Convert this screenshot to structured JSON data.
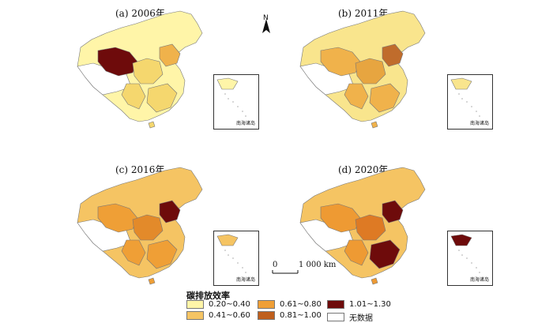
{
  "panels": [
    {
      "title": "(a) 2006年",
      "main": "#fff5a8",
      "a1": "#f5d76e",
      "a2": "#f0b24b",
      "hot": "#6e0b0b"
    },
    {
      "title": "(b) 2011年",
      "main": "#f9e58d",
      "a1": "#f0b24b",
      "a2": "#e7a540",
      "hot": "#c06c2c"
    },
    {
      "title": "(c) 2016年",
      "main": "#f5c463",
      "a1": "#ef9f36",
      "a2": "#e38a2a",
      "hot": "#6e0b0b"
    },
    {
      "title": "(d) 2020年",
      "main": "#f5c463",
      "a1": "#ee9a33",
      "a2": "#de7a24",
      "hot": "#6e0b0b"
    }
  ],
  "inset_label": "南海诸岛",
  "north_label": "N",
  "scale": {
    "zero": "0",
    "max": "1 000 km"
  },
  "legend": {
    "title": "碳排放效率",
    "items": [
      {
        "label": "0.20~0.40",
        "color": "#fff5a8"
      },
      {
        "label": "0.61~0.80",
        "color": "#ef9f36"
      },
      {
        "label": "1.01~1.30",
        "color": "#6e0b0b"
      },
      {
        "label": "0.41~0.60",
        "color": "#f5c463"
      },
      {
        "label": "0.81~1.00",
        "color": "#bf5f1d"
      },
      {
        "label": "无数据",
        "color": "#ffffff"
      }
    ]
  }
}
